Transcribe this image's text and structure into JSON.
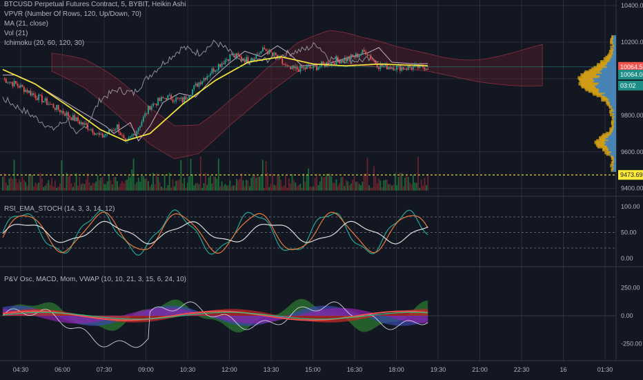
{
  "legend": {
    "title": "BTCUSD Perpetual Futures Contract, 5, BYBIT, Heikin Ashi",
    "vpvr": "VPVR (Number Of Rows, 120, Up/Down, 70)",
    "ma": "MA (21, close)",
    "vol": "Vol (21)",
    "ichimoku": "Ichimoku (20, 60, 120, 30)",
    "rsi": "RSI_EMA_STOCH (14, 3, 3, 14, 12)",
    "pv": "P&V Osc, MACD, Mom, VWAP (10, 10, 21, 3, 15, 6, 24, 10)"
  },
  "colors": {
    "background": "#131722",
    "up": "#26a69a",
    "down": "#ef5350",
    "ma": "#f0e040",
    "cloud": "#6b1c2a",
    "grid": "#2a2e39",
    "vpvr_up": "#d4a017",
    "vpvr_down": "#2f7fd0",
    "support": "#ffeb3b"
  },
  "chart_data": [
    {
      "type": "candlestick",
      "name": "price",
      "y_ticks": [
        "10400.00",
        "10200.00",
        "9800.00",
        "9600.00",
        "9400.00"
      ],
      "ylim": [
        9380,
        10430
      ],
      "badges": [
        {
          "label": "10064.50",
          "value": 10064.5,
          "color": "#ef5350"
        },
        {
          "label": "10064.00",
          "value": 10022,
          "color": "#1e8f86"
        },
        {
          "label": "03:02",
          "value": 9962,
          "color": "#1e8f86"
        },
        {
          "label": "9473.69",
          "value": 9473.69,
          "color": "#ffeb3b"
        }
      ],
      "support_level": 9473.69,
      "close_keypoints": [
        [
          0,
          10000
        ],
        [
          10,
          9960
        ],
        [
          25,
          9880
        ],
        [
          40,
          9800
        ],
        [
          55,
          9720
        ],
        [
          60,
          9680
        ],
        [
          70,
          9740
        ],
        [
          75,
          9640
        ],
        [
          82,
          9720
        ],
        [
          90,
          9850
        ],
        [
          100,
          9900
        ],
        [
          110,
          9880
        ],
        [
          120,
          9980
        ],
        [
          130,
          10060
        ],
        [
          140,
          10130
        ],
        [
          150,
          10100
        ],
        [
          160,
          10160
        ],
        [
          167,
          10120
        ],
        [
          175,
          10050
        ],
        [
          190,
          10060
        ],
        [
          205,
          10100
        ],
        [
          215,
          10120
        ],
        [
          222,
          10150
        ],
        [
          230,
          10070
        ],
        [
          245,
          10060
        ],
        [
          260,
          10065
        ]
      ],
      "ma_keypoints": [
        [
          0,
          10050
        ],
        [
          20,
          9970
        ],
        [
          40,
          9850
        ],
        [
          60,
          9720
        ],
        [
          75,
          9660
        ],
        [
          90,
          9700
        ],
        [
          110,
          9860
        ],
        [
          130,
          9990
        ],
        [
          150,
          10090
        ],
        [
          170,
          10120
        ],
        [
          190,
          10080
        ],
        [
          210,
          10070
        ],
        [
          230,
          10080
        ],
        [
          260,
          10070
        ]
      ]
    },
    {
      "type": "line",
      "name": "rsi_ema_stoch",
      "y_ticks": [
        "100.00",
        "50.00",
        "0.00"
      ],
      "ylim": [
        -8,
        112
      ],
      "levels": [
        80,
        50,
        20
      ]
    },
    {
      "type": "area",
      "name": "pv_macd_mom_vwap",
      "y_ticks": [
        "250.00",
        "0.00",
        "-250.00"
      ],
      "ylim": [
        -400,
        400
      ]
    }
  ],
  "time_axis": {
    "labels": [
      "04:30",
      "06:00",
      "07:30",
      "09:00",
      "10:30",
      "12:00",
      "13:30",
      "15:00",
      "16:30",
      "18:00",
      "19:30",
      "21:00",
      "22:30",
      "16",
      "01:30"
    ]
  }
}
